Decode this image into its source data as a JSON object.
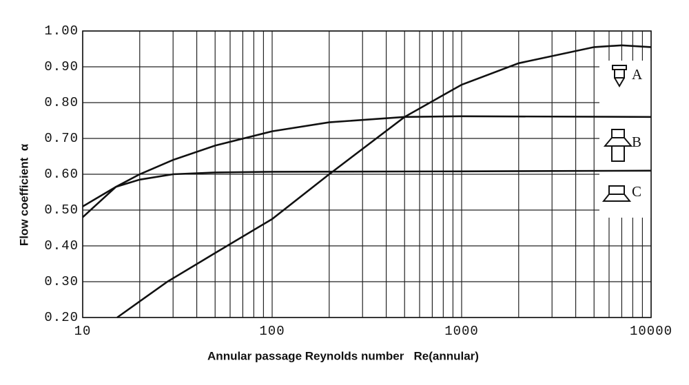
{
  "chart_data": {
    "type": "line",
    "x_label": "Annular passage Reynolds number   Re(annular)",
    "y_label": "Flow coefficient  α",
    "x_log": true,
    "minor_grid": true,
    "grid": true,
    "xlim": [
      10,
      10000
    ],
    "xticks": [
      10,
      100,
      1000,
      10000
    ],
    "ylim": [
      0.2,
      1.0
    ],
    "yticks": [
      {
        "value": 0.2,
        "label": "0.20"
      },
      {
        "value": 0.3,
        "label": "0.30"
      },
      {
        "value": 0.4,
        "label": "0.40"
      },
      {
        "value": 0.5,
        "label": "0.50"
      },
      {
        "value": 0.6,
        "label": "0.60"
      },
      {
        "value": 0.7,
        "label": "0.70"
      },
      {
        "value": 0.8,
        "label": "0.80"
      },
      {
        "value": 0.9,
        "label": "0.90"
      },
      {
        "value": 1.0,
        "label": "1.00"
      }
    ],
    "series": [
      {
        "name": "A",
        "color": "#111111",
        "x": [
          15.2,
          20,
          28,
          50,
          100,
          200,
          500,
          1000,
          2000,
          5000,
          7000,
          10000
        ],
        "values": [
          0.2,
          0.245,
          0.3,
          0.38,
          0.475,
          0.6,
          0.76,
          0.85,
          0.91,
          0.955,
          0.96,
          0.955
        ]
      },
      {
        "name": "B",
        "color": "#111111",
        "x": [
          10,
          15,
          20,
          30,
          50,
          100,
          200,
          500,
          1000,
          10000
        ],
        "values": [
          0.48,
          0.565,
          0.6,
          0.64,
          0.68,
          0.72,
          0.745,
          0.76,
          0.762,
          0.76
        ]
      },
      {
        "name": "C",
        "color": "#111111",
        "x": [
          10,
          15,
          20,
          30,
          50,
          100,
          1000,
          10000
        ],
        "values": [
          0.51,
          0.565,
          0.585,
          0.6,
          0.605,
          0.607,
          0.608,
          0.61
        ]
      }
    ]
  }
}
